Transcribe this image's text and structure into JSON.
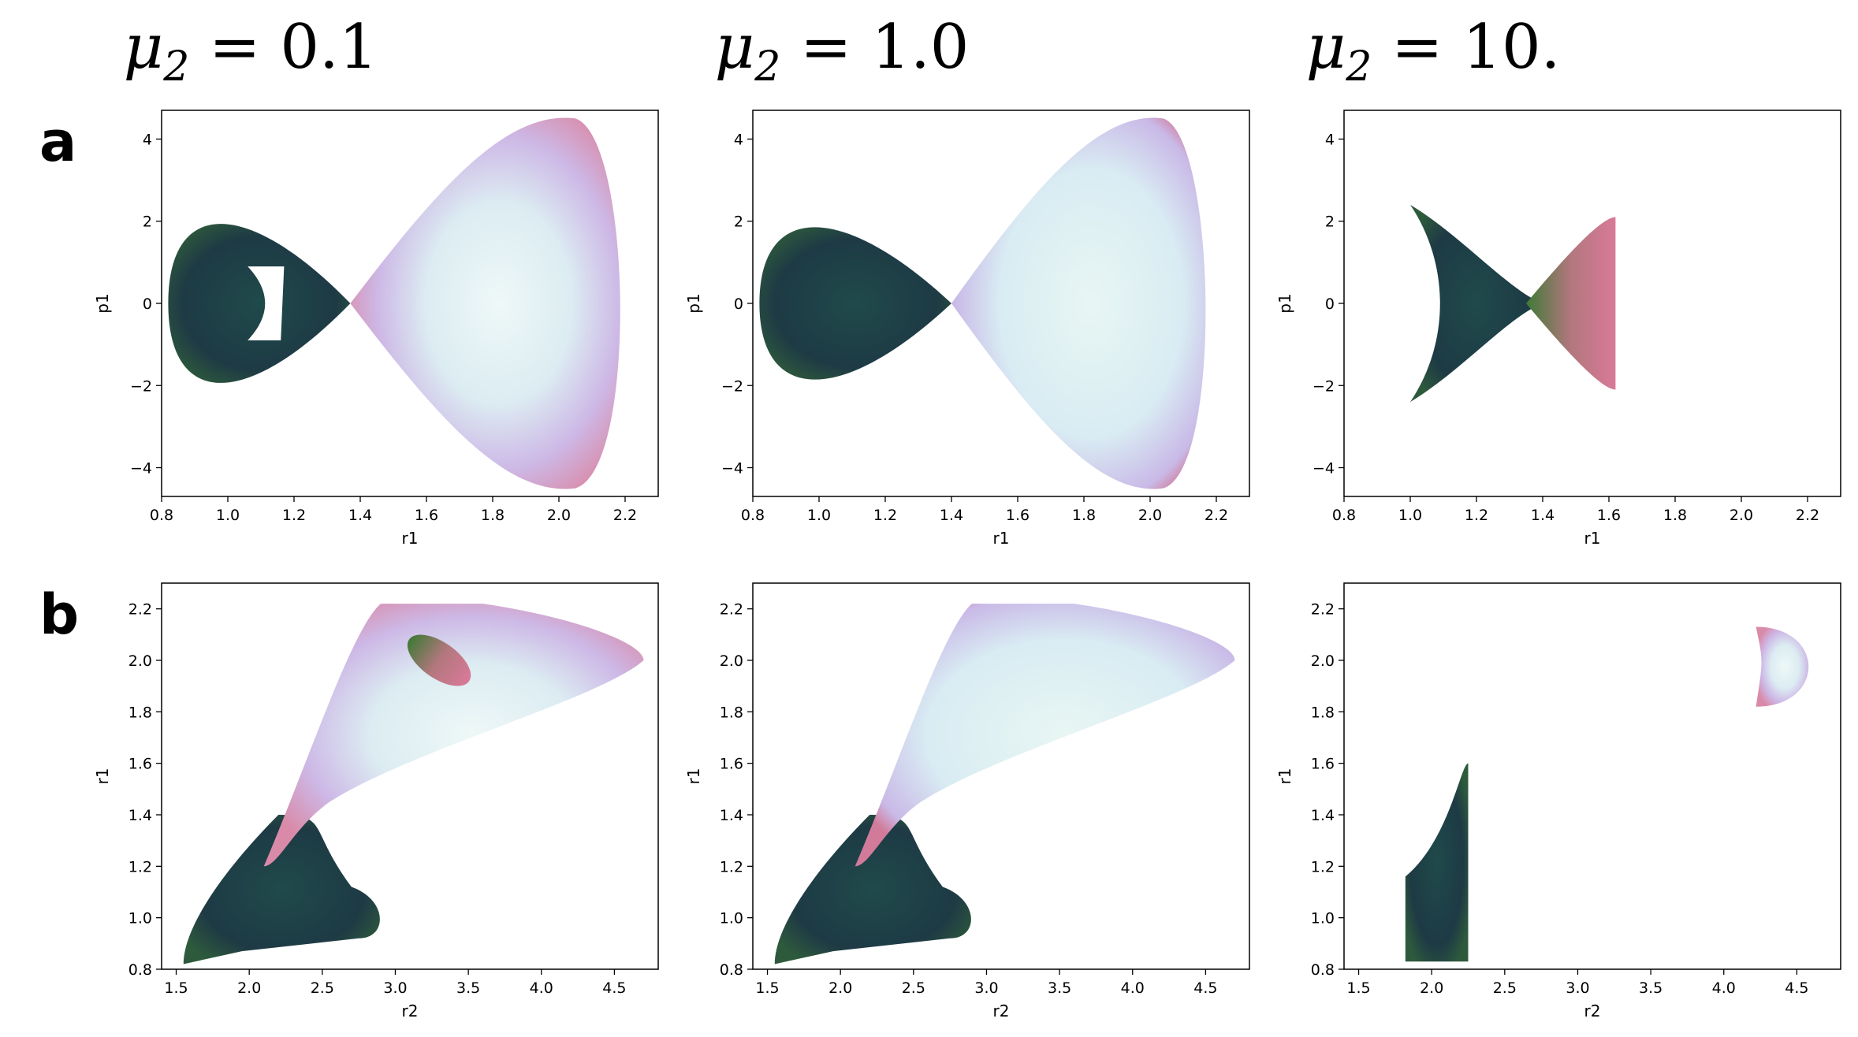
{
  "figure": {
    "column_titles": [
      {
        "symbol": "μ",
        "subscript": "2",
        "rest": " = 0.1"
      },
      {
        "symbol": "μ",
        "subscript": "2",
        "rest": " = 1.0"
      },
      {
        "symbol": "μ",
        "subscript": "2",
        "rest": " = 10."
      }
    ],
    "row_labels": [
      "a",
      "b"
    ]
  },
  "colors": {
    "dark": "#1e3a45",
    "green": "#3f7a36",
    "pink": "#d87a98",
    "lavender": "#cfc3eb",
    "pale": "#e2f1f3"
  },
  "chart_data": [
    {
      "type": "scatter",
      "panel": "a",
      "mu2": 0.1,
      "xlabel": "r1",
      "ylabel": "p1",
      "xlim": [
        0.8,
        2.3
      ],
      "ylim": [
        -4.7,
        4.7
      ],
      "xticks": [
        "0.8",
        "1.0",
        "1.2",
        "1.4",
        "1.6",
        "1.8",
        "2.0",
        "2.2"
      ],
      "yticks": [
        "−4",
        "−2",
        "0",
        "2",
        "4"
      ],
      "regions": [
        {
          "shape": "lobe",
          "x_range": [
            0.82,
            1.37
          ],
          "y_extent": 2.4,
          "color": "dark"
        },
        {
          "shape": "lobe",
          "x_range": [
            1.37,
            2.22
          ],
          "y_extent": 4.5,
          "color": "lavender"
        },
        {
          "shape": "hole",
          "center": [
            1.12,
            0.0
          ],
          "color": "white"
        }
      ]
    },
    {
      "type": "scatter",
      "panel": "a",
      "mu2": 1.0,
      "xlabel": "r1",
      "ylabel": "p1",
      "xlim": [
        0.8,
        2.3
      ],
      "ylim": [
        -4.7,
        4.7
      ],
      "xticks": [
        "0.8",
        "1.0",
        "1.2",
        "1.4",
        "1.6",
        "1.8",
        "2.0",
        "2.2"
      ],
      "yticks": [
        "−4",
        "−2",
        "0",
        "2",
        "4"
      ],
      "regions": [
        {
          "shape": "lobe",
          "x_range": [
            0.82,
            1.4
          ],
          "y_extent": 2.3,
          "color": "dark"
        },
        {
          "shape": "lobe",
          "x_range": [
            1.4,
            2.2
          ],
          "y_extent": 4.5,
          "color": "pale"
        }
      ]
    },
    {
      "type": "scatter",
      "panel": "a",
      "mu2": 10.0,
      "xlabel": "r1",
      "ylabel": "p1",
      "xlim": [
        0.8,
        2.3
      ],
      "ylim": [
        -4.7,
        4.7
      ],
      "xticks": [
        "0.8",
        "1.0",
        "1.2",
        "1.4",
        "1.6",
        "1.8",
        "2.0",
        "2.2"
      ],
      "yticks": [
        "−4",
        "−2",
        "0",
        "2",
        "4"
      ],
      "regions": [
        {
          "shape": "crescent",
          "x_range": [
            1.0,
            1.4
          ],
          "y_extent": 2.4,
          "color": "dark"
        },
        {
          "shape": "wedge",
          "x_range": [
            1.4,
            1.7
          ],
          "y_extent": 2.1,
          "color": "pink"
        }
      ]
    },
    {
      "type": "scatter",
      "panel": "b",
      "mu2": 0.1,
      "xlabel": "r2",
      "ylabel": "r1",
      "xlim": [
        1.4,
        4.8
      ],
      "ylim": [
        0.8,
        2.3
      ],
      "xticks": [
        "1.5",
        "2.0",
        "2.5",
        "3.0",
        "3.5",
        "4.0",
        "4.5"
      ],
      "yticks": [
        "0.8",
        "1.0",
        "1.2",
        "1.4",
        "1.6",
        "1.8",
        "2.0",
        "2.2"
      ],
      "regions": [
        {
          "shape": "lower",
          "x_range": [
            1.55,
            2.95
          ],
          "y_range": [
            0.82,
            1.4
          ],
          "color": "dark"
        },
        {
          "shape": "upper",
          "x_range": [
            2.1,
            4.7
          ],
          "y_range": [
            1.4,
            2.22
          ],
          "color": "lavender"
        },
        {
          "shape": "ellipse",
          "center": [
            3.3,
            2.0
          ],
          "color": "pink"
        }
      ]
    },
    {
      "type": "scatter",
      "panel": "b",
      "mu2": 1.0,
      "xlabel": "r2",
      "ylabel": "r1",
      "xlim": [
        1.4,
        4.8
      ],
      "ylim": [
        0.8,
        2.3
      ],
      "xticks": [
        "1.5",
        "2.0",
        "2.5",
        "3.0",
        "3.5",
        "4.0",
        "4.5"
      ],
      "yticks": [
        "0.8",
        "1.0",
        "1.2",
        "1.4",
        "1.6",
        "1.8",
        "2.0",
        "2.2"
      ],
      "regions": [
        {
          "shape": "lower",
          "x_range": [
            1.55,
            2.95
          ],
          "y_range": [
            0.82,
            1.4
          ],
          "color": "dark"
        },
        {
          "shape": "upper",
          "x_range": [
            2.1,
            4.7
          ],
          "y_range": [
            1.4,
            2.22
          ],
          "color": "pale"
        }
      ]
    },
    {
      "type": "scatter",
      "panel": "b",
      "mu2": 10.0,
      "xlabel": "r2",
      "ylabel": "r1",
      "xlim": [
        1.4,
        4.8
      ],
      "ylim": [
        0.8,
        2.3
      ],
      "xticks": [
        "1.5",
        "2.0",
        "2.5",
        "3.0",
        "3.5",
        "4.0",
        "4.5"
      ],
      "yticks": [
        "0.8",
        "1.0",
        "1.2",
        "1.4",
        "1.6",
        "1.8",
        "2.0",
        "2.2"
      ],
      "regions": [
        {
          "shape": "block",
          "x_range": [
            1.82,
            2.3
          ],
          "y_range": [
            0.83,
            1.6
          ],
          "color": "dark"
        },
        {
          "shape": "cap",
          "x_range": [
            4.22,
            4.7
          ],
          "y_range": [
            1.82,
            2.13
          ],
          "color": "lavender"
        }
      ]
    }
  ]
}
